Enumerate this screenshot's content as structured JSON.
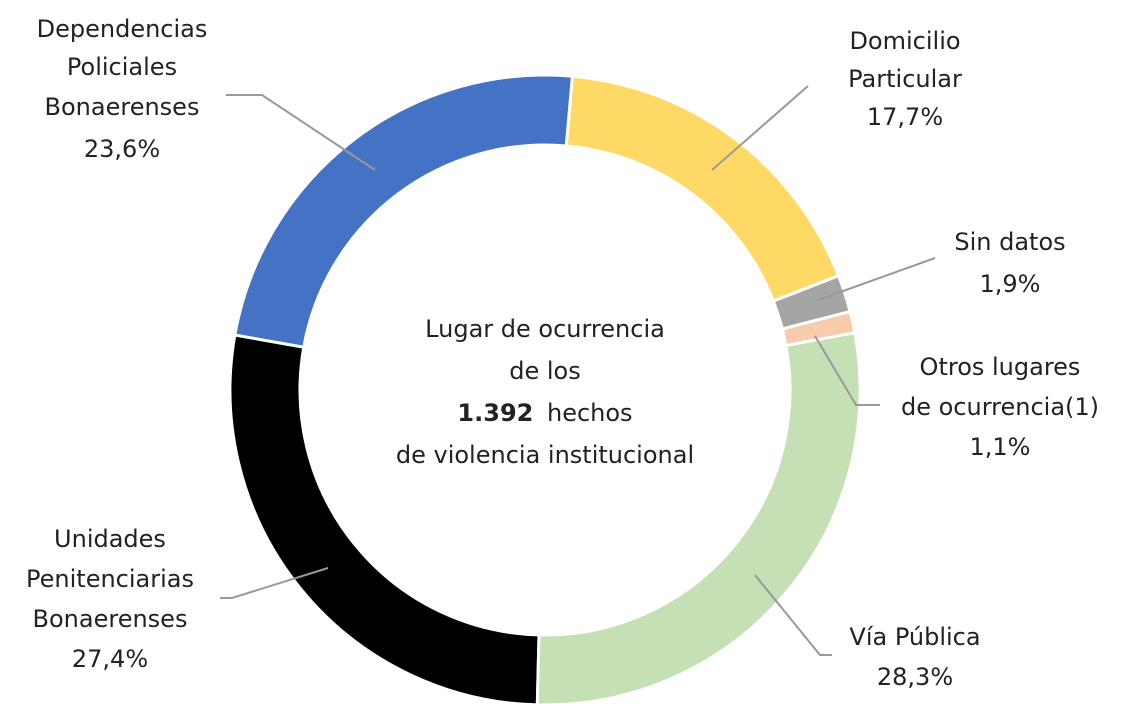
{
  "chart_data": {
    "type": "donut",
    "categories": [
      [
        "Domicilio",
        "Particular"
      ],
      [
        "Sin datos"
      ],
      [
        "Otros lugares",
        "de ocurrencia(1)"
      ],
      [
        "Vía Pública"
      ],
      [
        "Unidades",
        "Penitenciarias",
        "Bonaerenses"
      ],
      [
        "Dependencias",
        "Policiales",
        "Bonaerenses"
      ]
    ],
    "values": [
      17.7,
      1.9,
      1.1,
      28.3,
      27.4,
      23.6
    ],
    "value_labels": [
      "17,7%",
      "1,9%",
      "1,1%",
      "28,3%",
      "27,4%",
      "23,6%"
    ],
    "colors": [
      "#ffd966",
      "#a5a5a5",
      "#f8cbad",
      "#c5e0b4",
      "#000000",
      "#4472c4"
    ],
    "center_text": {
      "lines": [
        "Lugar de ocurrencia",
        "de los"
      ],
      "total": "1.392",
      "total_suffix": "hechos",
      "last": "de violencia institucional"
    }
  }
}
